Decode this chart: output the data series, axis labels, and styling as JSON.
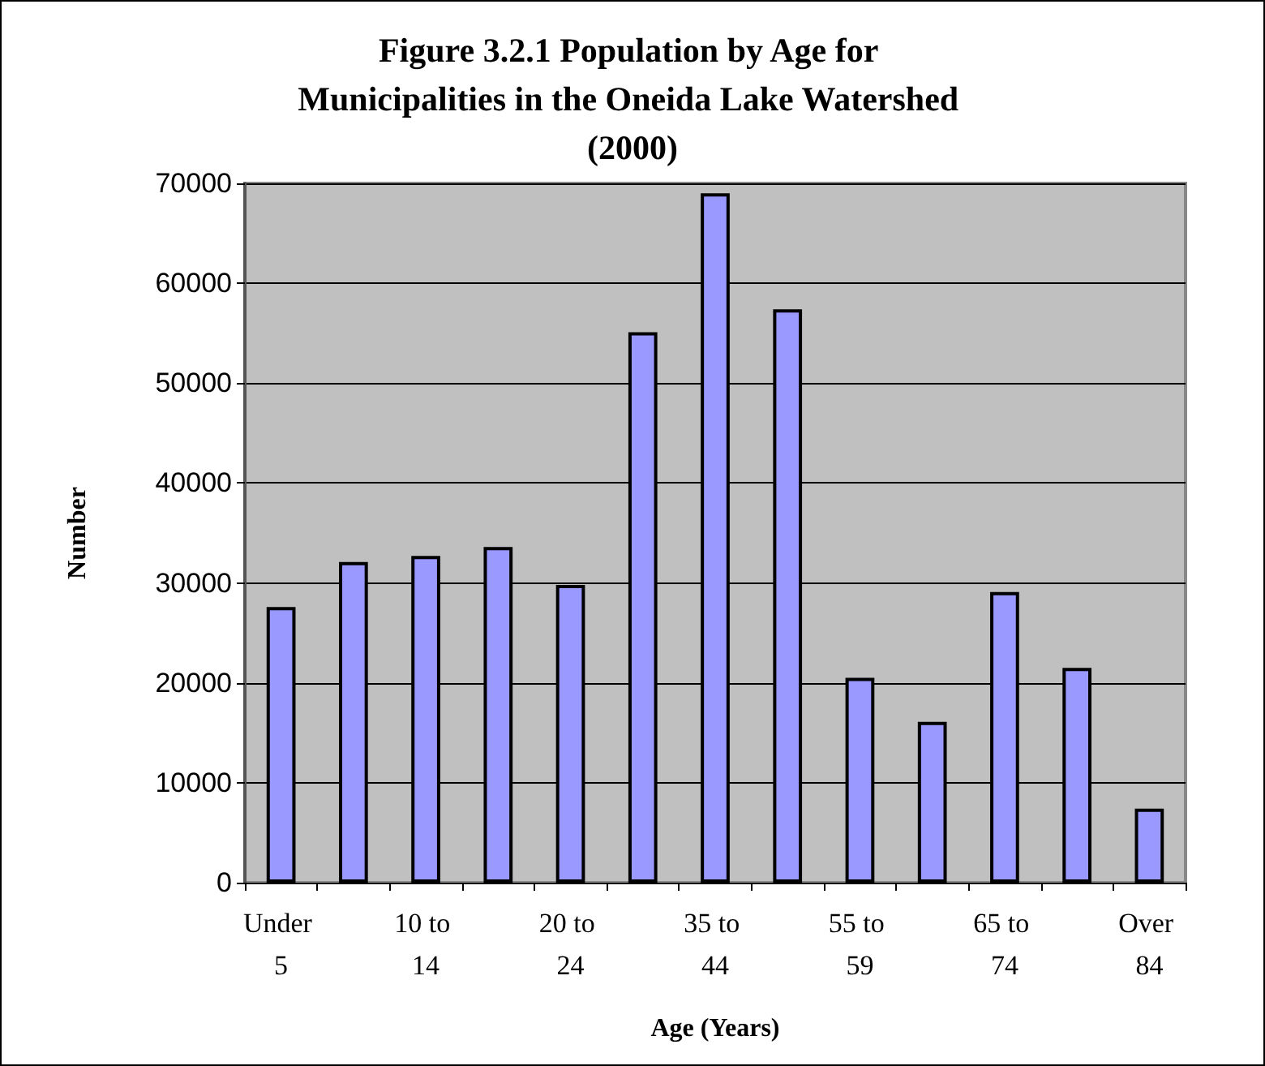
{
  "chart_data": {
    "type": "bar",
    "title": "Figure 3.2.1 Population by Age for Municipalities in the Oneida Lake Watershed (2000)",
    "xlabel": "Age (Years)",
    "ylabel": "Number",
    "categories": [
      "Under 5",
      null,
      "10 to 14",
      null,
      "20 to 24",
      null,
      "35 to 44",
      null,
      "55 to 59",
      null,
      "65 to 74",
      null,
      "Over 84"
    ],
    "values": [
      27600,
      32100,
      32700,
      33600,
      29800,
      55100,
      69000,
      57400,
      20500,
      16100,
      29100,
      21500,
      7400
    ],
    "color": "#9999ff",
    "ylim": [
      0,
      70000
    ],
    "yticks": [
      0,
      10000,
      20000,
      30000,
      40000,
      50000,
      60000,
      70000
    ],
    "grid": "y"
  }
}
